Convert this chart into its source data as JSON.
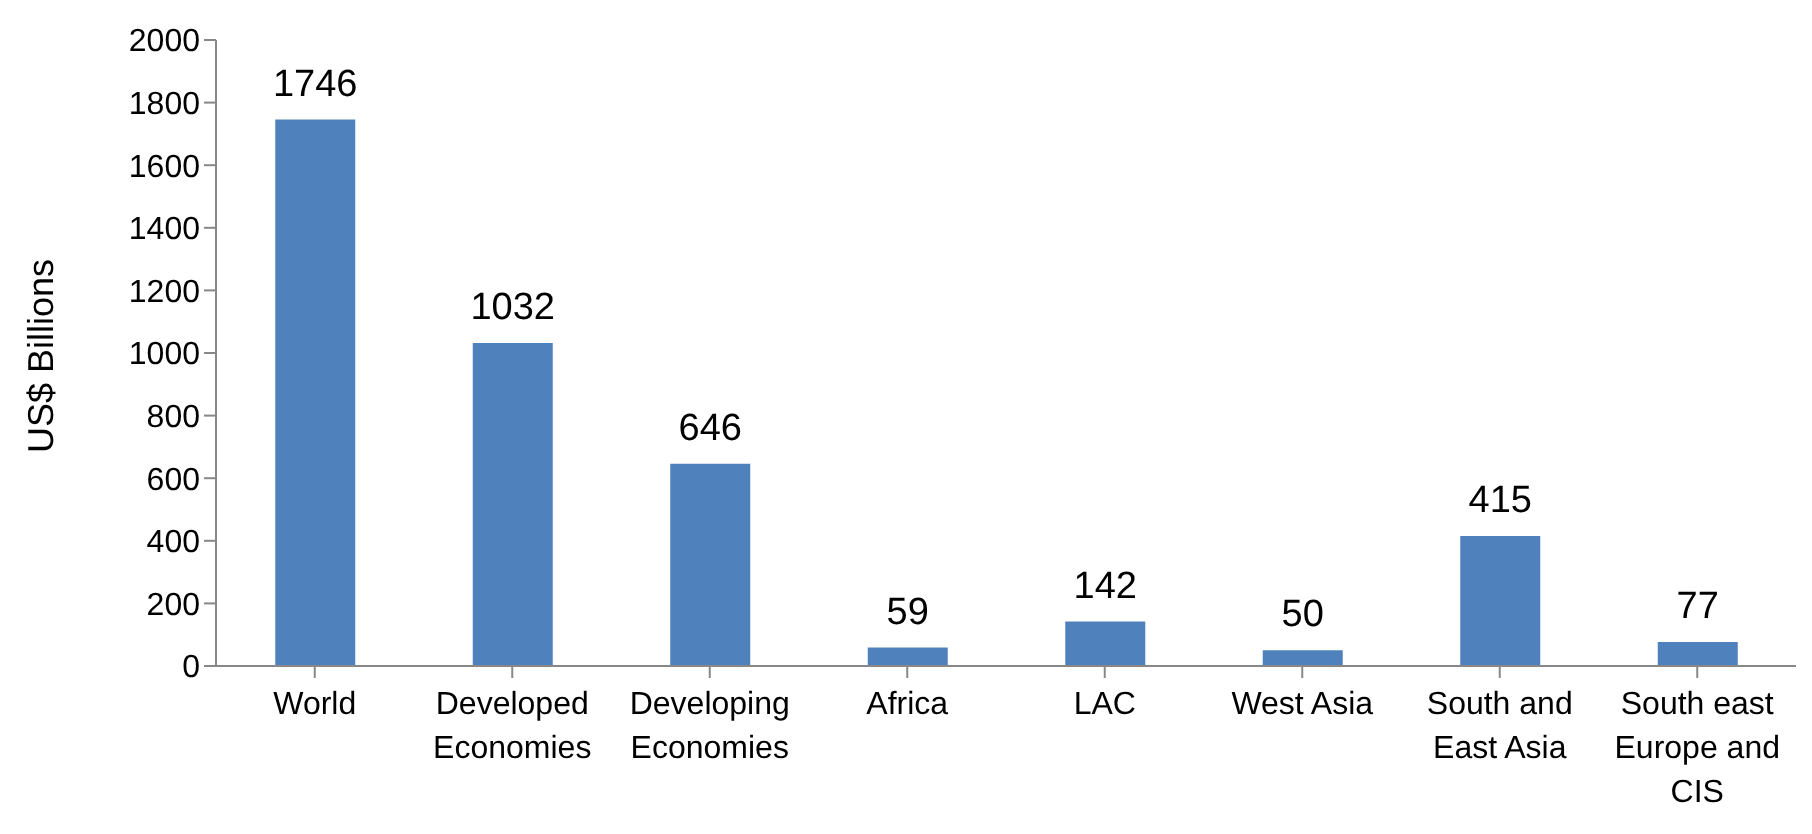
{
  "chart_data": {
    "type": "bar",
    "ylabel": "US$ Billions",
    "categories": [
      "World",
      "Developed Economies",
      "Developing Economies",
      "Africa",
      "LAC",
      "West Asia",
      "South and East Asia",
      "South east Europe and CIS"
    ],
    "values": [
      1746,
      1032,
      646,
      59,
      142,
      50,
      415,
      77
    ],
    "color": "#4f81bd",
    "ylim": [
      0,
      2000
    ],
    "yticks": [
      0,
      200,
      400,
      600,
      800,
      1000,
      1200,
      1400,
      1600,
      1800,
      2000
    ],
    "grid": false,
    "data_labels": true
  }
}
